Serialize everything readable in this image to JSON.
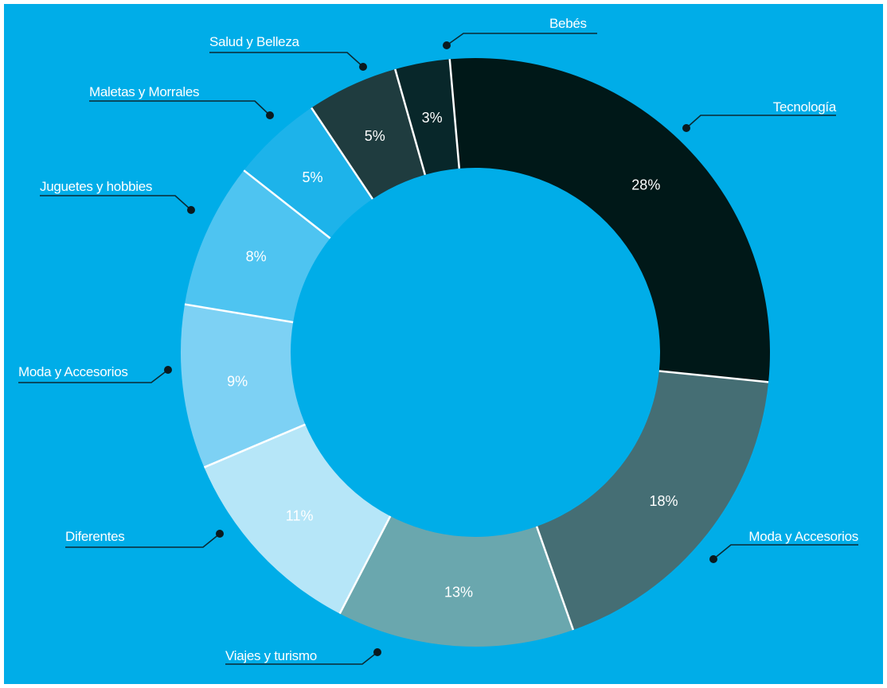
{
  "chart_data": {
    "type": "pie",
    "style": "donut",
    "unit": "%",
    "title": "",
    "legend": "none",
    "slices": [
      {
        "label": "Tecnología",
        "value": 28,
        "value_label": "28%",
        "color": "#001818"
      },
      {
        "label": "Moda y Accesorios",
        "value": 18,
        "value_label": "18%",
        "color": "#456e74"
      },
      {
        "label": "Viajes y turismo",
        "value": 13,
        "value_label": "13%",
        "color": "#6aa7ae"
      },
      {
        "label": "Diferentes",
        "value": 11,
        "value_label": "11%",
        "color": "#b6e6f8"
      },
      {
        "label": "Moda y Accesorios",
        "value": 9,
        "value_label": "9%",
        "color": "#7dd1f4"
      },
      {
        "label": "Juguetes y hobbies",
        "value": 8,
        "value_label": "8%",
        "color": "#4ec4f1"
      },
      {
        "label": "Maletas y Morrales",
        "value": 5,
        "value_label": "5%",
        "color": "#1db3ea"
      },
      {
        "label": "Salud y Belleza",
        "value": 5,
        "value_label": "5%",
        "color": "#1f3c3f"
      },
      {
        "label": "Bebés",
        "value": 3,
        "value_label": "3%",
        "color": "#08272a"
      }
    ],
    "background_color": "#00ade8"
  }
}
